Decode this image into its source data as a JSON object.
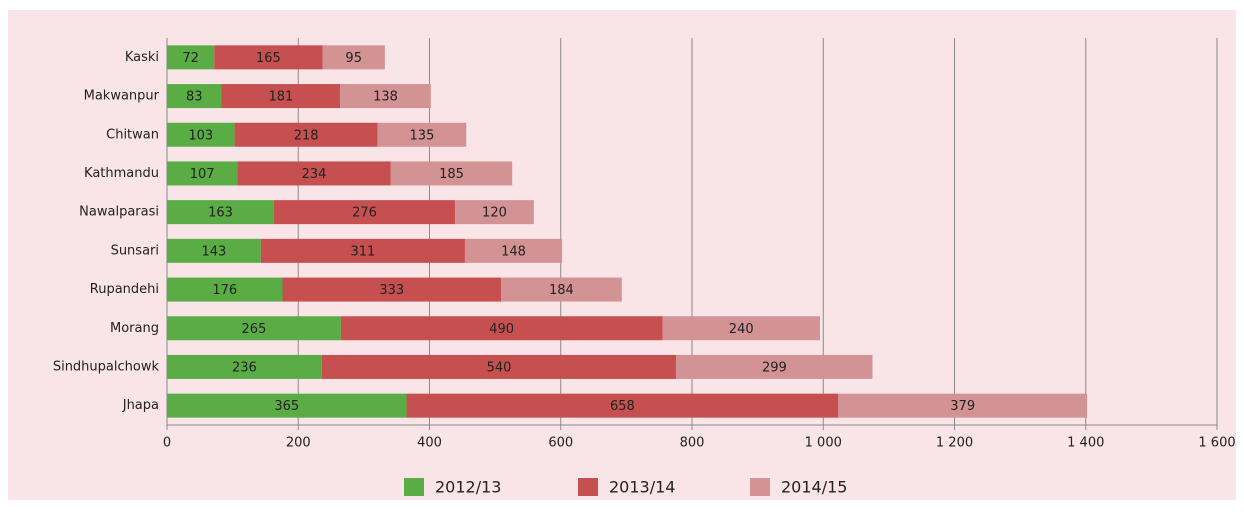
{
  "chart_data": {
    "type": "stacked_bar_horizontal",
    "categories": [
      "Kaski",
      "Makwanpur",
      "Chitwan",
      "Kathmandu",
      "Nawalparasi",
      "Sunsari",
      "Rupandehi",
      "Morang",
      "Sindhupalchowk",
      "Jhapa"
    ],
    "series": [
      {
        "name": "2012/13",
        "color": "#5aac45",
        "values": [
          72,
          83,
          103,
          107,
          163,
          143,
          176,
          265,
          236,
          365
        ]
      },
      {
        "name": "2013/14",
        "color": "#c5504f",
        "values": [
          165,
          181,
          218,
          234,
          276,
          311,
          333,
          490,
          540,
          658
        ]
      },
      {
        "name": "2014/15",
        "color": "#d39395",
        "values": [
          95,
          138,
          135,
          185,
          120,
          148,
          184,
          240,
          299,
          379
        ]
      }
    ],
    "xlim": [
      0,
      1600
    ],
    "xticks": [
      0,
      200,
      400,
      600,
      800,
      {
        "value": 1000,
        "label": "1 000"
      },
      {
        "value": 1200,
        "label": "1 200"
      },
      {
        "value": 1400,
        "label": "1 400"
      },
      {
        "value": 1600,
        "label": "1 600"
      }
    ],
    "grid": true,
    "legend": "bottom"
  }
}
